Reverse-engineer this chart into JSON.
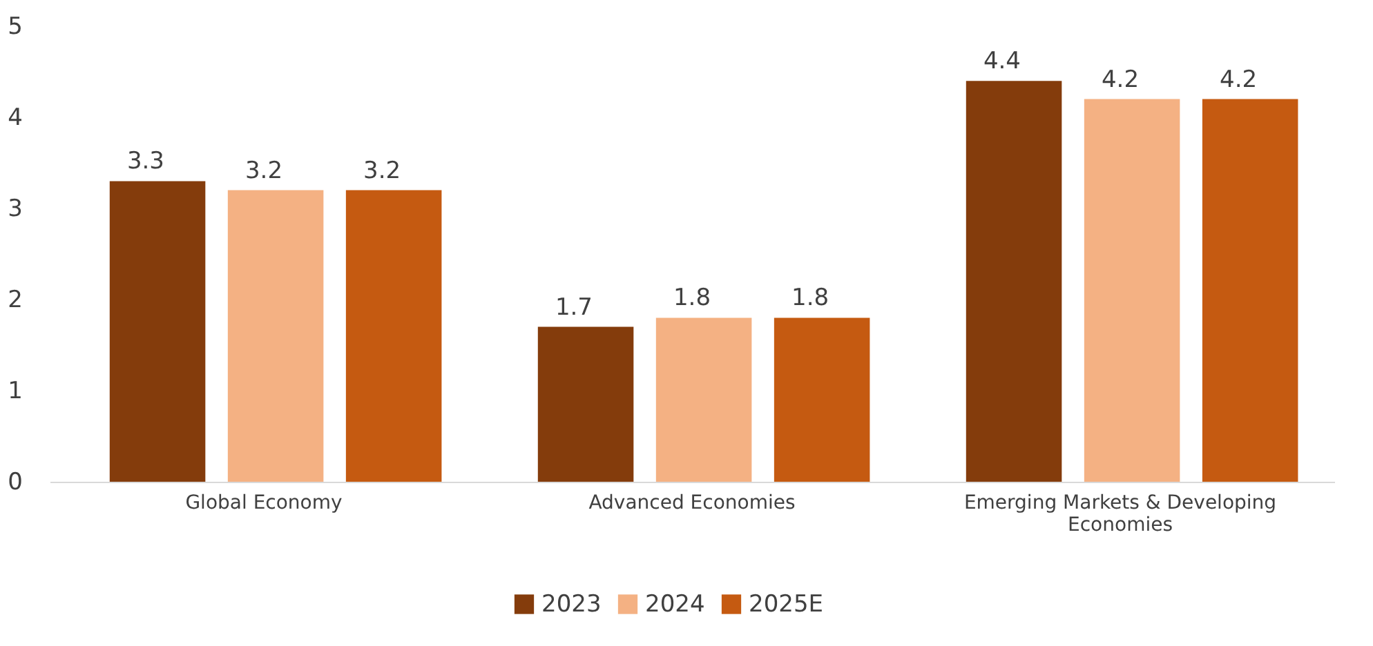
{
  "chart_data": {
    "type": "bar",
    "categories": [
      "Global Economy",
      "Advanced Economies",
      "Emerging Markets & Developing Economies"
    ],
    "series": [
      {
        "name": "2023",
        "color": "#843c0c",
        "values": [
          3.3,
          1.7,
          4.4
        ]
      },
      {
        "name": "2024",
        "color": "#f4b183",
        "values": [
          3.2,
          1.8,
          4.2
        ]
      },
      {
        "name": "2025E",
        "color": "#c55a11",
        "values": [
          3.2,
          1.8,
          4.2
        ]
      }
    ],
    "ylim": [
      0,
      5
    ],
    "yticks": [
      0,
      1,
      2,
      3,
      4,
      5
    ],
    "grid": false,
    "legend": "bottom",
    "data_labels": true
  }
}
